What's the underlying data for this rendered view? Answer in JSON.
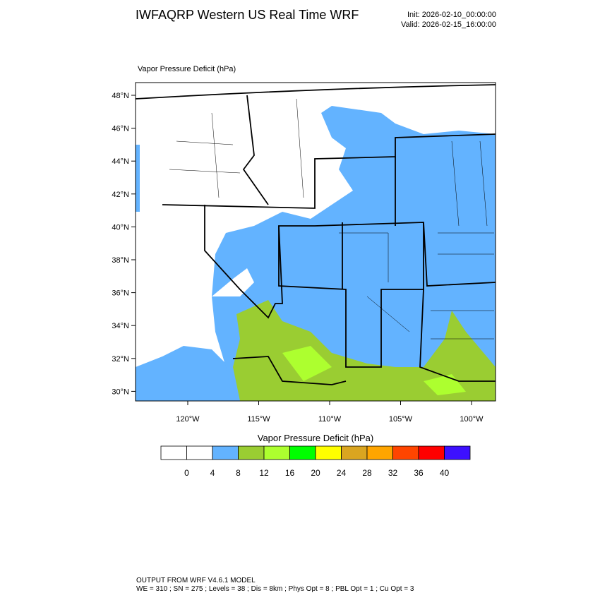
{
  "header": {
    "title": "IWFAQRP Western US Real Time WRF",
    "init": "Init: 2026-02-10_00:00:00",
    "valid": "Valid: 2026-02-15_16:00:00"
  },
  "map": {
    "label": "Vapor Pressure Deficit   (hPa)",
    "lat_labels": [
      "48°N",
      "46°N",
      "44°N",
      "42°N",
      "40°N",
      "38°N",
      "36°N",
      "34°N",
      "32°N",
      "30°N"
    ],
    "lon_labels": [
      "120°W",
      "115°W",
      "110°W",
      "105°W",
      "100°W"
    ]
  },
  "colorbar": {
    "title": "Vapor Pressure Deficit  (hPa)",
    "colors": [
      "#ffffff",
      "#ffffff",
      "#63b3ff",
      "#9acd32",
      "#adff2f",
      "#00ff00",
      "#ffff00",
      "#daa520",
      "#ffa500",
      "#ff4500",
      "#ff0000",
      "#3d10ff"
    ],
    "labels": [
      "0",
      "4",
      "8",
      "12",
      "16",
      "20",
      "24",
      "28",
      "32",
      "36",
      "40"
    ]
  },
  "footer": {
    "line1": "OUTPUT FROM WRF V4.6.1 MODEL",
    "line2": "WE = 310 ; SN = 275 ; Levels = 38 ; Dis = 8km ; Phys Opt = 8 ; PBL Opt = 1 ; Cu Opt = 3"
  }
}
